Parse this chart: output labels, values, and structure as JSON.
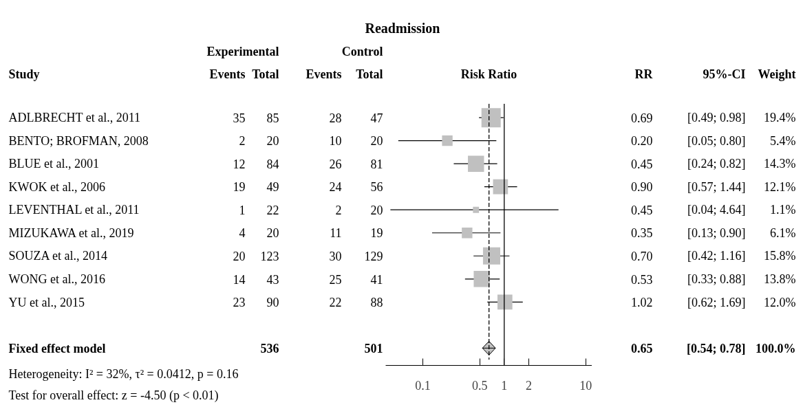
{
  "chart_data": [
    {
      "type": "other",
      "categories": [
        "Study",
        "Events",
        "Total",
        "Events",
        "Total"
      ],
      "annotations": [
        "Experimental",
        "Control",
        "ADLBRECHT et al., 2011",
        "35",
        "85",
        "28",
        "47",
        "BENTO; BROFMAN, 2008",
        "2",
        "20",
        "10",
        "20",
        "BLUE et al., 2001",
        "12",
        "84",
        "26",
        "81",
        "KWOK  et al., 2006",
        "19",
        "49",
        "24",
        "56",
        "LEVENTHAL et al., 2011",
        "1",
        "22",
        "2",
        "20",
        "MIZUKAWA et al., 2019",
        "4",
        "20",
        "11",
        "19",
        "SOUZA et al., 2014",
        "20",
        "123",
        "30",
        "129",
        "WONG et al., 2016",
        "14",
        "43",
        "25",
        "41",
        "YU et al., 2015",
        "23",
        "90",
        "22",
        "88",
        "Fixed effect model",
        null,
        "536",
        null,
        "501",
        "Heterogeneity: I² = 32%, τ² = 0.0412, p = 0.16",
        "Test for overall effect: z = -4.50 (p < 0.01)"
      ]
    },
    {
      "type": "scatter",
      "title": "Readmission",
      "xlabel": "Risk Ratio",
      "orientation": "horizontal",
      "log": "x",
      "grid": false,
      "tick_labels": "x",
      "categories": [
        null,
        null,
        null,
        null,
        null,
        null,
        null,
        null,
        null,
        null,
        null
      ],
      "xlim": [
        0.035,
        12
      ],
      "xticks": [
        0.1,
        0.5,
        1,
        2,
        10
      ],
      "series": [
        {
          "type": "bubble",
          "color": "#c0c0c0",
          "marker": "square",
          "values": [
            0.69,
            0.2,
            0.45,
            0.9,
            0.45,
            0.35,
            0.7,
            0.53,
            1.02,
            null,
            null
          ],
          "errors": [
            [
              0.49,
              0.98
            ],
            [
              0.05,
              0.8
            ],
            [
              0.24,
              0.82
            ],
            [
              0.57,
              1.44
            ],
            [
              0.04,
              4.64
            ],
            [
              0.13,
              0.9
            ],
            [
              0.42,
              1.16
            ],
            [
              0.33,
              0.88
            ],
            [
              0.62,
              1.69
            ],
            null,
            null
          ],
          "sizes": [
            1,
            0.3,
            0.7,
            0.6,
            0.1,
            0.3,
            0.8,
            0.7,
            0.6,
            null,
            null
          ]
        },
        {
          "color": "#c0c0c0",
          "marker": "diamond",
          "values": [
            null,
            null,
            null,
            null,
            null,
            null,
            null,
            null,
            null,
            null,
            0.65
          ],
          "errors": [
            null,
            null,
            null,
            null,
            null,
            null,
            null,
            null,
            null,
            null,
            [
              0.54,
              0.78
            ]
          ]
        }
      ],
      "ref_lines": [
        {
          "axis": "x",
          "value": 1,
          "line_style": "solid"
        },
        {
          "axis": "x",
          "value": 0.65,
          "line_style": "dashed"
        }
      ]
    },
    {
      "type": "other",
      "categories": [
        "RR",
        "95%-CI",
        "Weight"
      ],
      "annotations": [
        "0.69",
        "[0.49; 0.98]",
        "19.4%",
        "0.20",
        "[0.05; 0.80]",
        "5.4%",
        "0.45",
        "[0.24; 0.82]",
        "14.3%",
        "0.90",
        "[0.57; 1.44]",
        "12.1%",
        "0.45",
        "[0.04; 4.64]",
        "1.1%",
        "0.35",
        "[0.13; 0.90]",
        "6.1%",
        "0.70",
        "[0.42; 1.16]",
        "15.8%",
        "0.53",
        "[0.33; 0.88]",
        "13.8%",
        "1.02",
        "[0.62; 1.69]",
        "12.0%",
        "0.65",
        "[0.54; 0.78]",
        "100.0%"
      ]
    }
  ]
}
